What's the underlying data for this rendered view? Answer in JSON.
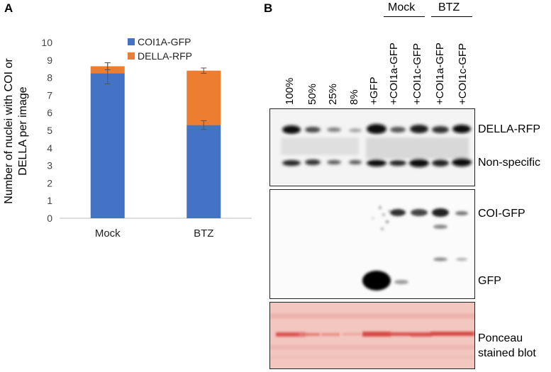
{
  "panels": {
    "a": "A",
    "b": "B"
  },
  "chart_data": {
    "type": "bar",
    "stacked": true,
    "categories": [
      "Mock",
      "BTZ"
    ],
    "series": [
      {
        "name": "COI1A-GFP",
        "values": [
          8.25,
          5.3
        ],
        "errors": [
          0.6,
          0.25
        ]
      },
      {
        "name": "DELLA-RFP",
        "values": [
          0.4,
          3.1
        ],
        "errors": [
          0.2,
          0.15
        ]
      }
    ],
    "ylabel_line1": "Number of nuclei with COI or",
    "ylabel_line2": "DELLA per image",
    "xlabel": "",
    "ylim": [
      0,
      10
    ],
    "yticks": [
      0,
      1,
      2,
      3,
      4,
      5,
      6,
      7,
      8,
      9,
      10
    ],
    "grid": false,
    "legend_position": "top-right",
    "colors": [
      "#4472c4",
      "#ed7d31"
    ]
  },
  "blot": {
    "treatments": {
      "mock": "Mock",
      "btz": "BTZ"
    },
    "lanes": [
      "100%",
      "50%",
      "25%",
      "8%",
      "+GFP",
      "+COI1a-GFP",
      "+COI1c-GFP",
      "+COI1a-GFP",
      "+COI1c-GFP"
    ],
    "band_labels": {
      "della": "DELLA-RFP",
      "nonspecific": "Non-specific",
      "coi": "COI-GFP",
      "gfp": "GFP",
      "ponceau_1": "Ponceau",
      "ponceau_2": "stained blot"
    },
    "colors": {
      "ponceau_bg": "#f3c7c0",
      "ponceau_band": "#d9534f",
      "band_dark": "#111111"
    }
  }
}
